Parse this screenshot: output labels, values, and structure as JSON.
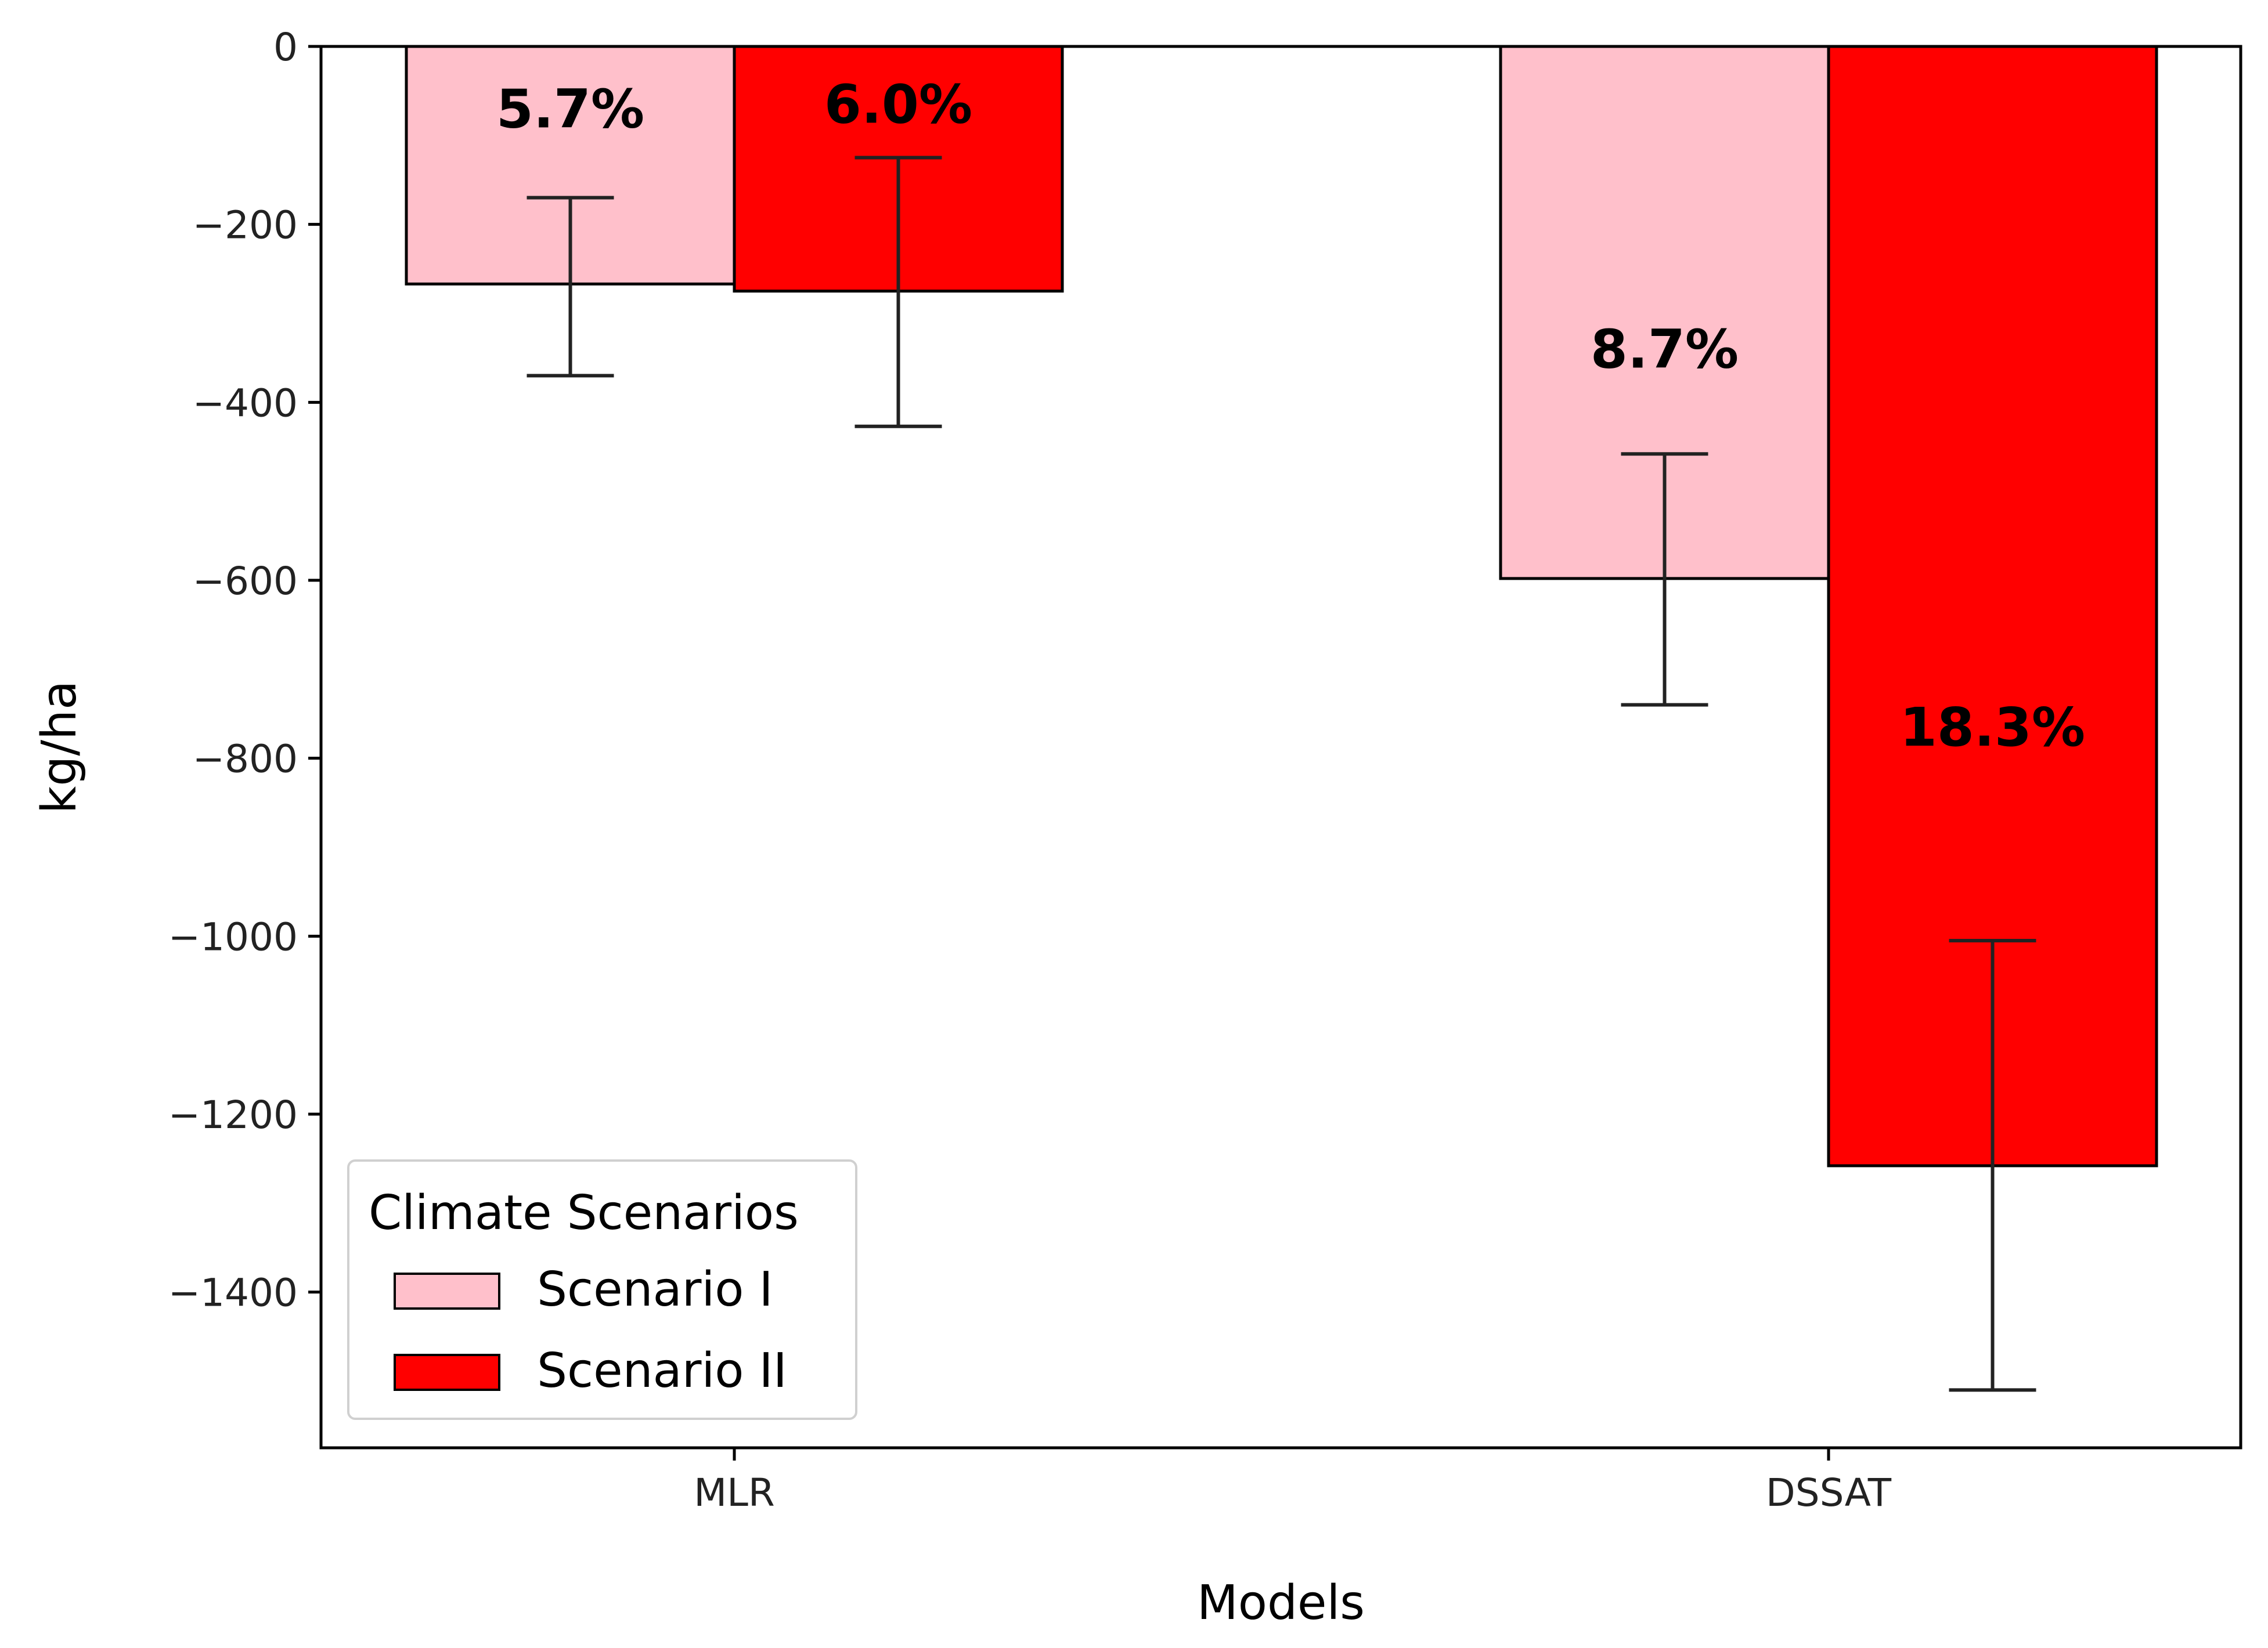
{
  "chart_data": {
    "type": "bar",
    "title": "",
    "xlabel": "Models",
    "ylabel": "kg/ha",
    "categories": [
      "MLR",
      "DSSAT"
    ],
    "ylim": [
      -1575,
      0
    ],
    "yticks": [
      0,
      -200,
      -400,
      -600,
      -800,
      -1000,
      -1200,
      -1400
    ],
    "ytick_labels": [
      "0",
      "−200",
      "−400",
      "−600",
      "−800",
      "−1000",
      "−1200",
      "−1400"
    ],
    "grid": false,
    "series": [
      {
        "name": "Scenario I",
        "color": "#ffc0cb",
        "values": [
          -267,
          -598
        ],
        "error_low": [
          -370,
          -740
        ],
        "error_high": [
          -170,
          -458
        ],
        "labels": [
          "5.7%",
          "8.7%"
        ],
        "label_values": [
          -70,
          -340
        ]
      },
      {
        "name": "Scenario II",
        "color": "#ff0000",
        "values": [
          -275,
          -1258
        ],
        "error_low": [
          -427,
          -1510
        ],
        "error_high": [
          -125,
          -1005
        ],
        "labels": [
          "6.0%",
          "18.3%"
        ],
        "label_values": [
          -65,
          -765
        ]
      }
    ],
    "legend": {
      "title": "Climate Scenarios",
      "placement": "lower-left",
      "entries": [
        "Scenario I",
        "Scenario II"
      ]
    }
  }
}
